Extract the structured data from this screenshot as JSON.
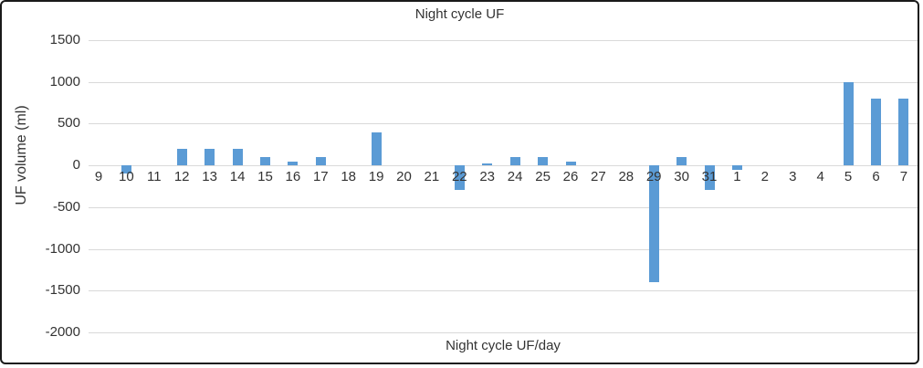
{
  "chart_data": {
    "type": "bar",
    "title": "Night cycle UF",
    "xlabel": "Night cycle UF/day",
    "ylabel": "UF volume (ml)",
    "categories": [
      "9",
      "10",
      "11",
      "12",
      "13",
      "14",
      "15",
      "16",
      "17",
      "18",
      "19",
      "20",
      "21",
      "22",
      "23",
      "24",
      "25",
      "26",
      "27",
      "28",
      "29",
      "30",
      "31",
      "1",
      "2",
      "3",
      "4",
      "5",
      "6",
      "7"
    ],
    "values": [
      0,
      -100,
      0,
      200,
      200,
      200,
      100,
      50,
      100,
      0,
      400,
      0,
      0,
      -300,
      25,
      100,
      100,
      50,
      0,
      0,
      -1400,
      100,
      -300,
      -50,
      0,
      0,
      0,
      1000,
      800,
      800
    ],
    "y_ticks": [
      1500,
      1000,
      500,
      0,
      -500,
      -1000,
      -1500,
      -2000
    ],
    "ylim": [
      -2000,
      1500
    ],
    "grid": "horizontal",
    "legend": "none",
    "bar_color": "#5B9BD5",
    "gridline_color": "#D9D9D9",
    "text_color": "#333333",
    "frame_color": "#1a1a1a"
  }
}
